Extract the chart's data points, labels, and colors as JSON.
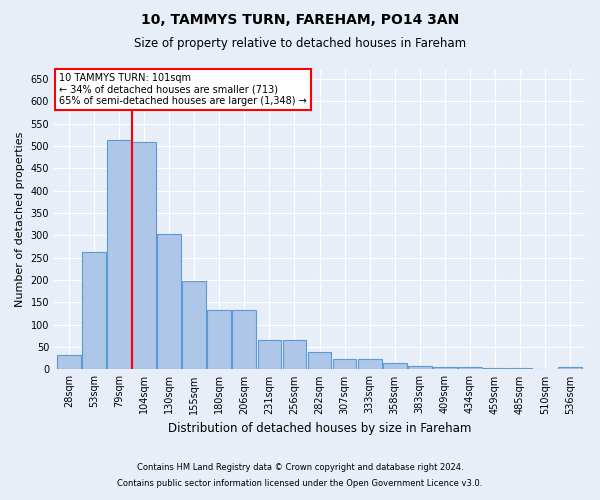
{
  "title": "10, TAMMYS TURN, FAREHAM, PO14 3AN",
  "subtitle": "Size of property relative to detached houses in Fareham",
  "xlabel": "Distribution of detached houses by size in Fareham",
  "ylabel": "Number of detached properties",
  "categories": [
    "28sqm",
    "53sqm",
    "79sqm",
    "104sqm",
    "130sqm",
    "155sqm",
    "180sqm",
    "206sqm",
    "231sqm",
    "256sqm",
    "282sqm",
    "307sqm",
    "333sqm",
    "358sqm",
    "383sqm",
    "409sqm",
    "434sqm",
    "459sqm",
    "485sqm",
    "510sqm",
    "536sqm"
  ],
  "values": [
    33,
    262,
    513,
    510,
    303,
    197,
    132,
    132,
    65,
    65,
    40,
    24,
    24,
    15,
    8,
    5,
    5,
    3,
    3,
    2,
    5
  ],
  "bar_color": "#aec6e8",
  "bar_edge_color": "#5b9bd5",
  "annotation_line0": "10 TAMMYS TURN: 101sqm",
  "annotation_line1": "← 34% of detached houses are smaller (713)",
  "annotation_line2": "65% of semi-detached houses are larger (1,348) →",
  "annotation_box_color": "white",
  "annotation_box_edge": "red",
  "vline_color": "red",
  "vline_x_index": 3,
  "background_color": "#e8eef8",
  "grid_color": "white",
  "ylim": [
    0,
    670
  ],
  "yticks": [
    0,
    50,
    100,
    150,
    200,
    250,
    300,
    350,
    400,
    450,
    500,
    550,
    600,
    650
  ],
  "footnote1": "Contains HM Land Registry data © Crown copyright and database right 2024.",
  "footnote2": "Contains public sector information licensed under the Open Government Licence v3.0.",
  "title_fontsize": 10,
  "subtitle_fontsize": 8.5,
  "ylabel_fontsize": 8,
  "xlabel_fontsize": 8.5,
  "tick_fontsize": 7,
  "footnote_fontsize": 6
}
